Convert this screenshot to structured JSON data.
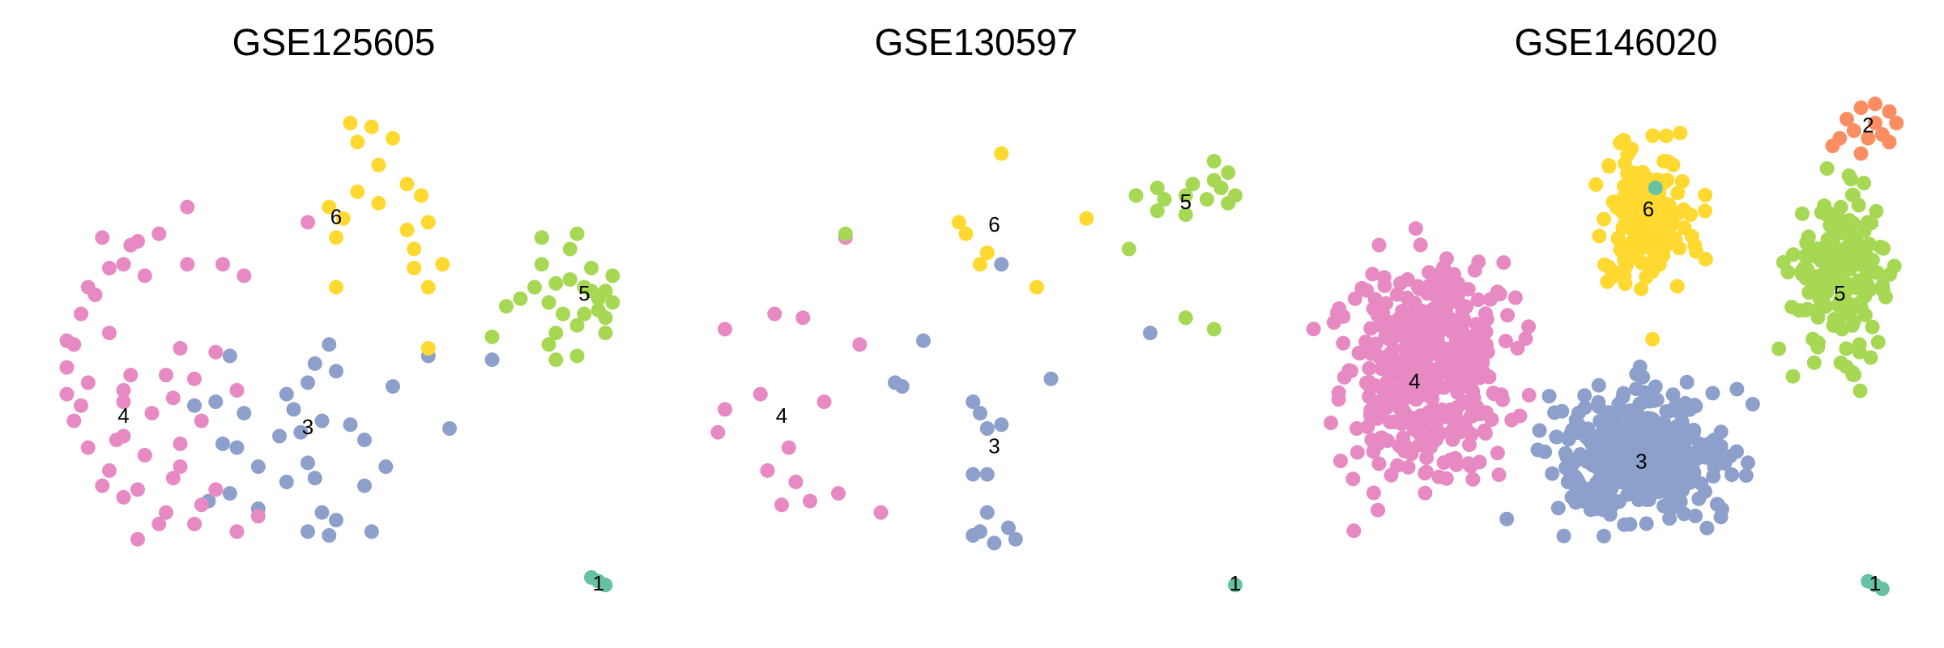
{
  "chart_data": [
    {
      "type": "scatter",
      "title": "GSE125605",
      "cluster_labels": [
        {
          "text": "1",
          "x": 7.7,
          "y": -6.2
        },
        {
          "text": "3",
          "x": 3.6,
          "y": -2.1
        },
        {
          "text": "4",
          "x": 1.0,
          "y": -1.8
        },
        {
          "text": "5",
          "x": 7.5,
          "y": 1.4
        },
        {
          "text": "6",
          "x": 4.0,
          "y": 3.4
        }
      ],
      "series": [
        {
          "group": "1",
          "color": "#66C2A5",
          "points": [
            [
              7.6,
              -6.0
            ],
            [
              7.7,
              -6.1
            ],
            [
              7.8,
              -6.2
            ]
          ]
        },
        {
          "group": "3",
          "color": "#8DA0CB",
          "points": [
            [
              2.5,
              -0.2
            ],
            [
              3.9,
              0.1
            ],
            [
              3.7,
              -0.4
            ],
            [
              4.0,
              -0.6
            ],
            [
              3.3,
              -1.2
            ],
            [
              3.6,
              -0.9
            ],
            [
              3.4,
              -1.6
            ],
            [
              3.8,
              -1.9
            ],
            [
              4.2,
              -2.0
            ],
            [
              4.4,
              -2.4
            ],
            [
              3.2,
              -2.3
            ],
            [
              3.5,
              -2.2
            ],
            [
              2.7,
              -1.7
            ],
            [
              2.3,
              -1.4
            ],
            [
              2.0,
              -1.5
            ],
            [
              2.6,
              -2.6
            ],
            [
              3.6,
              -3.0
            ],
            [
              2.9,
              -3.1
            ],
            [
              3.3,
              -3.5
            ],
            [
              3.7,
              -3.4
            ],
            [
              4.4,
              -3.6
            ],
            [
              2.5,
              -3.8
            ],
            [
              2.2,
              -4.0
            ],
            [
              2.9,
              -4.2
            ],
            [
              3.8,
              -4.3
            ],
            [
              4.0,
              -4.5
            ],
            [
              3.6,
              -4.8
            ],
            [
              3.9,
              -4.9
            ],
            [
              4.5,
              -4.8
            ],
            [
              5.3,
              -0.2
            ],
            [
              4.8,
              -1.0
            ],
            [
              5.6,
              -2.1
            ],
            [
              4.7,
              -3.1
            ],
            [
              6.2,
              -0.3
            ],
            [
              2.4,
              -2.5
            ]
          ]
        },
        {
          "group": "4",
          "color": "#E78AC3",
          "points": [
            [
              1.9,
              3.7
            ],
            [
              1.5,
              3.0
            ],
            [
              1.1,
              2.7
            ],
            [
              0.8,
              2.1
            ],
            [
              0.5,
              1.6
            ],
            [
              0.4,
              0.9
            ],
            [
              0.3,
              0.1
            ],
            [
              0.2,
              -0.5
            ],
            [
              0.2,
              -1.2
            ],
            [
              0.3,
              -1.9
            ],
            [
              0.5,
              -2.6
            ],
            [
              0.8,
              -3.2
            ],
            [
              1.2,
              -3.7
            ],
            [
              1.6,
              -4.3
            ],
            [
              2.0,
              -4.6
            ],
            [
              2.6,
              -4.8
            ],
            [
              0.7,
              2.9
            ],
            [
              1.0,
              2.2
            ],
            [
              1.3,
              1.9
            ],
            [
              1.9,
              2.2
            ],
            [
              2.4,
              2.2
            ],
            [
              2.7,
              1.9
            ],
            [
              0.6,
              1.4
            ],
            [
              0.2,
              0.2
            ],
            [
              0.5,
              -0.9
            ],
            [
              1.0,
              -1.1
            ],
            [
              1.0,
              -2.3
            ],
            [
              1.3,
              -2.8
            ],
            [
              1.7,
              -3.4
            ],
            [
              2.3,
              -3.7
            ],
            [
              1.8,
              -2.5
            ],
            [
              1.8,
              -3.1
            ],
            [
              2.1,
              -4.1
            ],
            [
              1.5,
              -4.6
            ],
            [
              1.2,
              -5.0
            ],
            [
              2.9,
              -4.4
            ],
            [
              0.7,
              -3.6
            ],
            [
              1.0,
              -3.9
            ],
            [
              1.1,
              -0.7
            ],
            [
              2.0,
              -0.8
            ],
            [
              1.7,
              -1.3
            ],
            [
              1.4,
              -1.7
            ],
            [
              2.1,
              -1.9
            ],
            [
              1.0,
              -1.4
            ],
            [
              0.4,
              -1.5
            ],
            [
              0.9,
              -2.4
            ],
            [
              1.6,
              -0.7
            ],
            [
              2.6,
              -1.1
            ],
            [
              1.8,
              0.0
            ],
            [
              2.3,
              -0.1
            ],
            [
              0.8,
              0.4
            ],
            [
              3.6,
              3.3
            ],
            [
              1.2,
              2.8
            ]
          ]
        },
        {
          "group": "5",
          "color": "#A6D854",
          "points": [
            [
              6.9,
              2.9
            ],
            [
              7.4,
              3.0
            ],
            [
              7.3,
              2.6
            ],
            [
              7.3,
              1.8
            ],
            [
              7.1,
              1.7
            ],
            [
              7.5,
              1.6
            ],
            [
              7.6,
              1.5
            ],
            [
              7.7,
              1.3
            ],
            [
              7.5,
              0.9
            ],
            [
              7.2,
              0.9
            ],
            [
              7.0,
              1.2
            ],
            [
              6.8,
              1.6
            ],
            [
              7.9,
              1.2
            ],
            [
              7.8,
              0.8
            ],
            [
              7.4,
              0.6
            ],
            [
              7.1,
              0.4
            ],
            [
              7.0,
              0.1
            ],
            [
              7.4,
              -0.2
            ],
            [
              6.6,
              1.3
            ],
            [
              6.2,
              0.3
            ],
            [
              7.8,
              0.4
            ],
            [
              7.9,
              1.9
            ],
            [
              7.6,
              2.1
            ],
            [
              7.8,
              1.5
            ],
            [
              7.1,
              -0.3
            ],
            [
              6.4,
              1.1
            ],
            [
              7.7,
              1.0
            ],
            [
              6.9,
              2.2
            ]
          ]
        },
        {
          "group": "6",
          "color": "#FFD92F",
          "points": [
            [
              4.2,
              5.9
            ],
            [
              4.5,
              5.8
            ],
            [
              4.3,
              5.4
            ],
            [
              4.8,
              5.5
            ],
            [
              4.6,
              4.8
            ],
            [
              5.0,
              4.3
            ],
            [
              4.3,
              4.1
            ],
            [
              5.2,
              4.0
            ],
            [
              3.9,
              3.7
            ],
            [
              4.1,
              3.4
            ],
            [
              4.0,
              2.9
            ],
            [
              5.3,
              3.3
            ],
            [
              5.0,
              3.1
            ],
            [
              5.1,
              2.6
            ],
            [
              5.5,
              2.2
            ],
            [
              5.1,
              2.1
            ],
            [
              5.3,
              1.6
            ],
            [
              4.0,
              1.6
            ],
            [
              5.3,
              0.0
            ],
            [
              4.6,
              3.8
            ]
          ]
        }
      ]
    },
    {
      "type": "scatter",
      "title": "GSE130597",
      "cluster_labels": [
        {
          "text": "1",
          "x": 7.6,
          "y": -6.2
        },
        {
          "text": "3",
          "x": 4.2,
          "y": -2.6
        },
        {
          "text": "4",
          "x": 1.2,
          "y": -1.8
        },
        {
          "text": "5",
          "x": 6.9,
          "y": 3.8
        },
        {
          "text": "6",
          "x": 4.2,
          "y": 3.2
        }
      ],
      "series": [
        {
          "group": "1",
          "color": "#66C2A5",
          "points": [
            [
              7.6,
              -6.2
            ]
          ]
        },
        {
          "group": "3",
          "color": "#8DA0CB",
          "points": [
            [
              4.3,
              2.2
            ],
            [
              3.2,
              0.2
            ],
            [
              5.0,
              -0.8
            ],
            [
              2.9,
              -1.0
            ],
            [
              3.9,
              -1.4
            ],
            [
              4.0,
              -1.7
            ],
            [
              4.1,
              -2.1
            ],
            [
              4.3,
              -2.0
            ],
            [
              3.9,
              -3.3
            ],
            [
              4.1,
              -3.3
            ],
            [
              4.1,
              -4.3
            ],
            [
              4.4,
              -4.7
            ],
            [
              4.0,
              -4.8
            ],
            [
              3.9,
              -4.9
            ],
            [
              4.2,
              -5.1
            ],
            [
              4.5,
              -5.0
            ],
            [
              6.4,
              0.4
            ],
            [
              2.8,
              -0.9
            ]
          ]
        },
        {
          "group": "4",
          "color": "#E78AC3",
          "points": [
            [
              0.4,
              0.5
            ],
            [
              1.1,
              0.9
            ],
            [
              1.5,
              0.8
            ],
            [
              2.3,
              0.1
            ],
            [
              0.9,
              -1.2
            ],
            [
              0.4,
              -1.6
            ],
            [
              0.3,
              -2.2
            ],
            [
              1.3,
              -2.6
            ],
            [
              1.8,
              -1.4
            ],
            [
              1.0,
              -3.2
            ],
            [
              1.4,
              -3.5
            ],
            [
              1.2,
              -4.1
            ],
            [
              1.6,
              -4.0
            ],
            [
              2.0,
              -3.8
            ],
            [
              2.6,
              -4.3
            ],
            [
              2.1,
              2.9
            ]
          ]
        },
        {
          "group": "5",
          "color": "#A6D854",
          "points": [
            [
              7.3,
              4.9
            ],
            [
              7.5,
              4.6
            ],
            [
              7.3,
              4.4
            ],
            [
              7.0,
              4.3
            ],
            [
              7.4,
              4.2
            ],
            [
              6.9,
              4.0
            ],
            [
              7.2,
              3.9
            ],
            [
              6.6,
              3.9
            ],
            [
              6.5,
              3.6
            ],
            [
              6.9,
              3.5
            ],
            [
              7.6,
              4.0
            ],
            [
              7.5,
              3.8
            ],
            [
              6.5,
              4.2
            ],
            [
              6.2,
              4.0
            ],
            [
              6.1,
              2.6
            ],
            [
              6.9,
              0.8
            ],
            [
              7.3,
              0.5
            ],
            [
              2.1,
              3.0
            ]
          ]
        },
        {
          "group": "6",
          "color": "#FFD92F",
          "points": [
            [
              4.3,
              5.1
            ],
            [
              3.7,
              3.3
            ],
            [
              3.8,
              3.0
            ],
            [
              5.5,
              3.4
            ],
            [
              4.1,
              2.5
            ],
            [
              4.8,
              1.6
            ],
            [
              4.0,
              2.2
            ]
          ]
        }
      ]
    },
    {
      "type": "scatter",
      "title": "GSE146020",
      "cluster_labels": [
        {
          "text": "1",
          "x": 7.6,
          "y": -6.2
        },
        {
          "text": "2",
          "x": 7.5,
          "y": 5.8
        },
        {
          "text": "3",
          "x": 4.3,
          "y": -3.0
        },
        {
          "text": "4",
          "x": 1.1,
          "y": -0.9
        },
        {
          "text": "5",
          "x": 7.1,
          "y": 1.4
        },
        {
          "text": "6",
          "x": 4.4,
          "y": 3.6
        }
      ],
      "series": [
        {
          "group": "1",
          "color": "#66C2A5",
          "points": [
            [
              7.5,
              -6.1
            ],
            [
              7.6,
              -6.2
            ],
            [
              7.7,
              -6.3
            ],
            [
              4.5,
              4.2
            ]
          ]
        },
        {
          "group": "2",
          "color": "#FC8D62",
          "points": [
            [
              7.2,
              6.0
            ],
            [
              7.4,
              6.3
            ],
            [
              7.6,
              6.4
            ],
            [
              7.8,
              6.2
            ],
            [
              7.9,
              5.9
            ],
            [
              7.7,
              5.6
            ],
            [
              7.5,
              5.5
            ],
            [
              7.3,
              5.7
            ],
            [
              7.1,
              5.5
            ],
            [
              7.0,
              5.3
            ],
            [
              7.4,
              5.1
            ],
            [
              7.6,
              5.9
            ],
            [
              7.8,
              5.4
            ]
          ]
        }
      ],
      "dense_clusters": [
        {
          "group": "3",
          "color": "#8DA0CB",
          "center": [
            4.3,
            -2.8
          ],
          "spread": [
            1.1,
            1.4
          ],
          "count": 420
        },
        {
          "group": "4",
          "color": "#E78AC3",
          "center": [
            1.3,
            -0.6
          ],
          "spread": [
            1.0,
            2.4
          ],
          "count": 430
        },
        {
          "group": "5",
          "color": "#A6D854",
          "center": [
            7.1,
            2.0
          ],
          "spread": [
            0.6,
            1.8
          ],
          "count": 190
        },
        {
          "group": "6",
          "color": "#FFD92F",
          "center": [
            4.4,
            3.5
          ],
          "spread": [
            0.6,
            1.5
          ],
          "count": 170
        }
      ]
    }
  ]
}
